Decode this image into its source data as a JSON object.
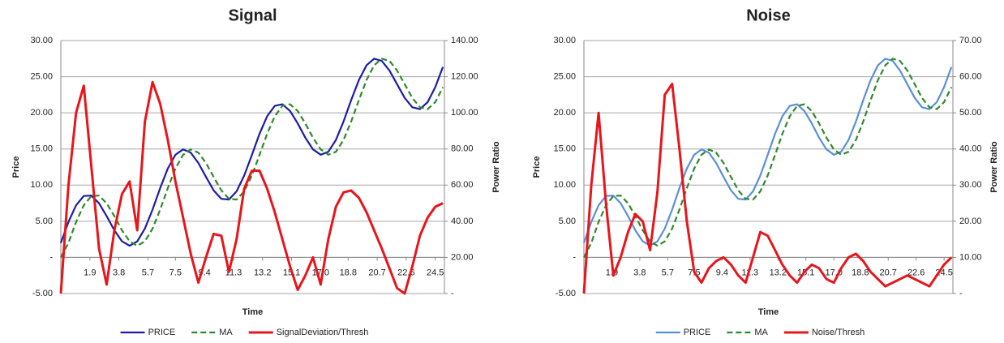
{
  "chart_data": [
    {
      "type": "line",
      "title": "Signal",
      "x_label": "Time",
      "y_label": "Price",
      "y2_label": "Power Ratio",
      "x": [
        0,
        0.5,
        1,
        1.5,
        2,
        2.5,
        3,
        3.5,
        4,
        4.5,
        5,
        5.5,
        6,
        6.5,
        7,
        7.5,
        8,
        8.5,
        9,
        9.5,
        10,
        10.5,
        11,
        11.5,
        12,
        12.5,
        13,
        13.5,
        14,
        14.5,
        15,
        15.5,
        16,
        16.5,
        17,
        17.5,
        18,
        18.5,
        19,
        19.5,
        20,
        20.5,
        21,
        21.5,
        22,
        22.5,
        23,
        23.5,
        24,
        24.5,
        25
      ],
      "xlim": [
        0,
        25.1
      ],
      "xticks": [
        1.9,
        3.8,
        5.7,
        7.5,
        9.4,
        11.3,
        13.2,
        15.1,
        {
          "value": 17,
          "label": "17.0"
        },
        18.8,
        20.7,
        22.6,
        24.5
      ],
      "ylim": [
        -5,
        30
      ],
      "yticks": [
        {
          "value": -5,
          "label": "-5.00"
        },
        {
          "value": 0,
          "label": "-"
        },
        {
          "value": 5,
          "label": "5.00"
        },
        {
          "value": 10,
          "label": "10.00"
        },
        {
          "value": 15,
          "label": "15.00"
        },
        {
          "value": 20,
          "label": "20.00"
        },
        {
          "value": 25,
          "label": "25.00"
        },
        {
          "value": 30,
          "label": "30.00"
        }
      ],
      "y2lim": [
        0,
        140
      ],
      "y2ticks": [
        {
          "value": 0,
          "label": "-"
        },
        {
          "value": 20,
          "label": "20.00"
        },
        {
          "value": 40,
          "label": "40.00"
        },
        {
          "value": 60,
          "label": "60.00"
        },
        {
          "value": 80,
          "label": "80.00"
        },
        {
          "value": 100,
          "label": "100.00"
        },
        {
          "value": 120,
          "label": "120.00"
        },
        {
          "value": 140,
          "label": "140.00"
        }
      ],
      "grid": true,
      "series": [
        {
          "name": "PRICE",
          "color": "#1c1ca6",
          "values": [
            2.0,
            4.9,
            7.21,
            8.49,
            8.55,
            7.49,
            5.71,
            3.75,
            2.22,
            1.61,
            2.21,
            3.97,
            6.61,
            9.58,
            12.29,
            14.19,
            14.95,
            14.49,
            13.06,
            11.13,
            9.28,
            8.1,
            8.0,
            9.13,
            11.32,
            14.17,
            17.1,
            19.52,
            20.96,
            21.18,
            20.25,
            18.54,
            16.56,
            14.94,
            14.2,
            14.61,
            16.25,
            18.79,
            21.75,
            24.53,
            26.57,
            27.49,
            27.19,
            25.86,
            23.96,
            22.07,
            20.77,
            20.51,
            21.47,
            23.55,
            26.34
          ]
        },
        {
          "name": "MA",
          "color": "#2b8a2b",
          "dashed": true,
          "values": [
            0,
            2.0,
            4.9,
            7.21,
            8.49,
            8.55,
            7.49,
            5.71,
            3.75,
            2.22,
            1.61,
            2.21,
            3.97,
            6.61,
            9.58,
            12.29,
            14.19,
            14.95,
            14.49,
            13.06,
            11.13,
            9.28,
            8.1,
            8.0,
            9.13,
            11.32,
            14.17,
            17.1,
            19.52,
            20.96,
            21.18,
            20.25,
            18.54,
            16.56,
            14.94,
            14.2,
            14.61,
            16.25,
            18.79,
            21.75,
            24.53,
            26.57,
            27.49,
            27.19,
            25.86,
            23.96,
            22.07,
            20.77,
            20.51,
            21.47,
            23.55
          ]
        },
        {
          "name": "SignalDeviation/Thresh",
          "color": "#e8151b",
          "axis": "y2",
          "values": [
            0,
            60,
            100,
            115,
            70,
            25,
            5,
            35,
            55,
            62,
            35,
            95,
            117,
            105,
            85,
            62,
            42,
            22,
            6,
            20,
            33,
            32,
            12,
            30,
            58,
            68,
            68,
            58,
            45,
            30,
            15,
            2,
            10,
            20,
            5,
            30,
            48,
            56,
            57,
            53,
            45,
            35,
            25,
            14,
            3,
            0,
            15,
            32,
            42,
            48,
            50
          ]
        }
      ]
    },
    {
      "type": "line",
      "title": "Noise",
      "x_label": "Time",
      "y_label": "Price",
      "y2_label": "Power Ratio",
      "x": [
        0,
        0.5,
        1,
        1.5,
        2,
        2.5,
        3,
        3.5,
        4,
        4.5,
        5,
        5.5,
        6,
        6.5,
        7,
        7.5,
        8,
        8.5,
        9,
        9.5,
        10,
        10.5,
        11,
        11.5,
        12,
        12.5,
        13,
        13.5,
        14,
        14.5,
        15,
        15.5,
        16,
        16.5,
        17,
        17.5,
        18,
        18.5,
        19,
        19.5,
        20,
        20.5,
        21,
        21.5,
        22,
        22.5,
        23,
        23.5,
        24,
        24.5,
        25
      ],
      "xlim": [
        0,
        25.1
      ],
      "xticks": [
        1.9,
        3.8,
        5.7,
        7.5,
        9.4,
        11.3,
        13.2,
        15.1,
        {
          "value": 17,
          "label": "17.0"
        },
        18.8,
        20.7,
        22.6,
        24.5
      ],
      "ylim": [
        -5,
        30
      ],
      "yticks": [
        {
          "value": -5,
          "label": "-5.00"
        },
        {
          "value": 0,
          "label": "-"
        },
        {
          "value": 5,
          "label": "5.00"
        },
        {
          "value": 10,
          "label": "10.00"
        },
        {
          "value": 15,
          "label": "15.00"
        },
        {
          "value": 20,
          "label": "20.00"
        },
        {
          "value": 25,
          "label": "25.00"
        },
        {
          "value": 30,
          "label": "30.00"
        }
      ],
      "y2lim": [
        0,
        70
      ],
      "y2ticks": [
        {
          "value": 0,
          "label": "-"
        },
        {
          "value": 10,
          "label": "10.00"
        },
        {
          "value": 20,
          "label": "20.00"
        },
        {
          "value": 30,
          "label": "30.00"
        },
        {
          "value": 40,
          "label": "40.00"
        },
        {
          "value": 50,
          "label": "50.00"
        },
        {
          "value": 60,
          "label": "60.00"
        },
        {
          "value": 70,
          "label": "70.00"
        }
      ],
      "grid": true,
      "series": [
        {
          "name": "PRICE",
          "color": "#5a8fd8",
          "values": [
            2.0,
            4.9,
            7.21,
            8.49,
            8.55,
            7.49,
            5.71,
            3.75,
            2.22,
            1.61,
            2.21,
            3.97,
            6.61,
            9.58,
            12.29,
            14.19,
            14.95,
            14.49,
            13.06,
            11.13,
            9.28,
            8.1,
            8.0,
            9.13,
            11.32,
            14.17,
            17.1,
            19.52,
            20.96,
            21.18,
            20.25,
            18.54,
            16.56,
            14.94,
            14.2,
            14.61,
            16.25,
            18.79,
            21.75,
            24.53,
            26.57,
            27.49,
            27.19,
            25.86,
            23.96,
            22.07,
            20.77,
            20.51,
            21.47,
            23.55,
            26.34
          ]
        },
        {
          "name": "MA",
          "color": "#2b8a2b",
          "dashed": true,
          "values": [
            0,
            2.0,
            4.9,
            7.21,
            8.49,
            8.55,
            7.49,
            5.71,
            3.75,
            2.22,
            1.61,
            2.21,
            3.97,
            6.61,
            9.58,
            12.29,
            14.19,
            14.95,
            14.49,
            13.06,
            11.13,
            9.28,
            8.1,
            8.0,
            9.13,
            11.32,
            14.17,
            17.1,
            19.52,
            20.96,
            21.18,
            20.25,
            18.54,
            16.56,
            14.94,
            14.2,
            14.61,
            16.25,
            18.79,
            21.75,
            24.53,
            26.57,
            27.49,
            27.19,
            25.86,
            23.96,
            22.07,
            20.77,
            20.51,
            21.47,
            23.55
          ]
        },
        {
          "name": "Noise/Thresh",
          "color": "#e8151b",
          "axis": "y2",
          "values": [
            0,
            30,
            50,
            25,
            5,
            10,
            17,
            22,
            20,
            12,
            28,
            55,
            58,
            40,
            20,
            6,
            3,
            7,
            9,
            10,
            8,
            5,
            3,
            10,
            17,
            16,
            12,
            8,
            5,
            3,
            6,
            8,
            7,
            4,
            3,
            7,
            10,
            11,
            9,
            6,
            4,
            2,
            3,
            4,
            5,
            4,
            3,
            2,
            5,
            8,
            10
          ]
        }
      ]
    }
  ]
}
